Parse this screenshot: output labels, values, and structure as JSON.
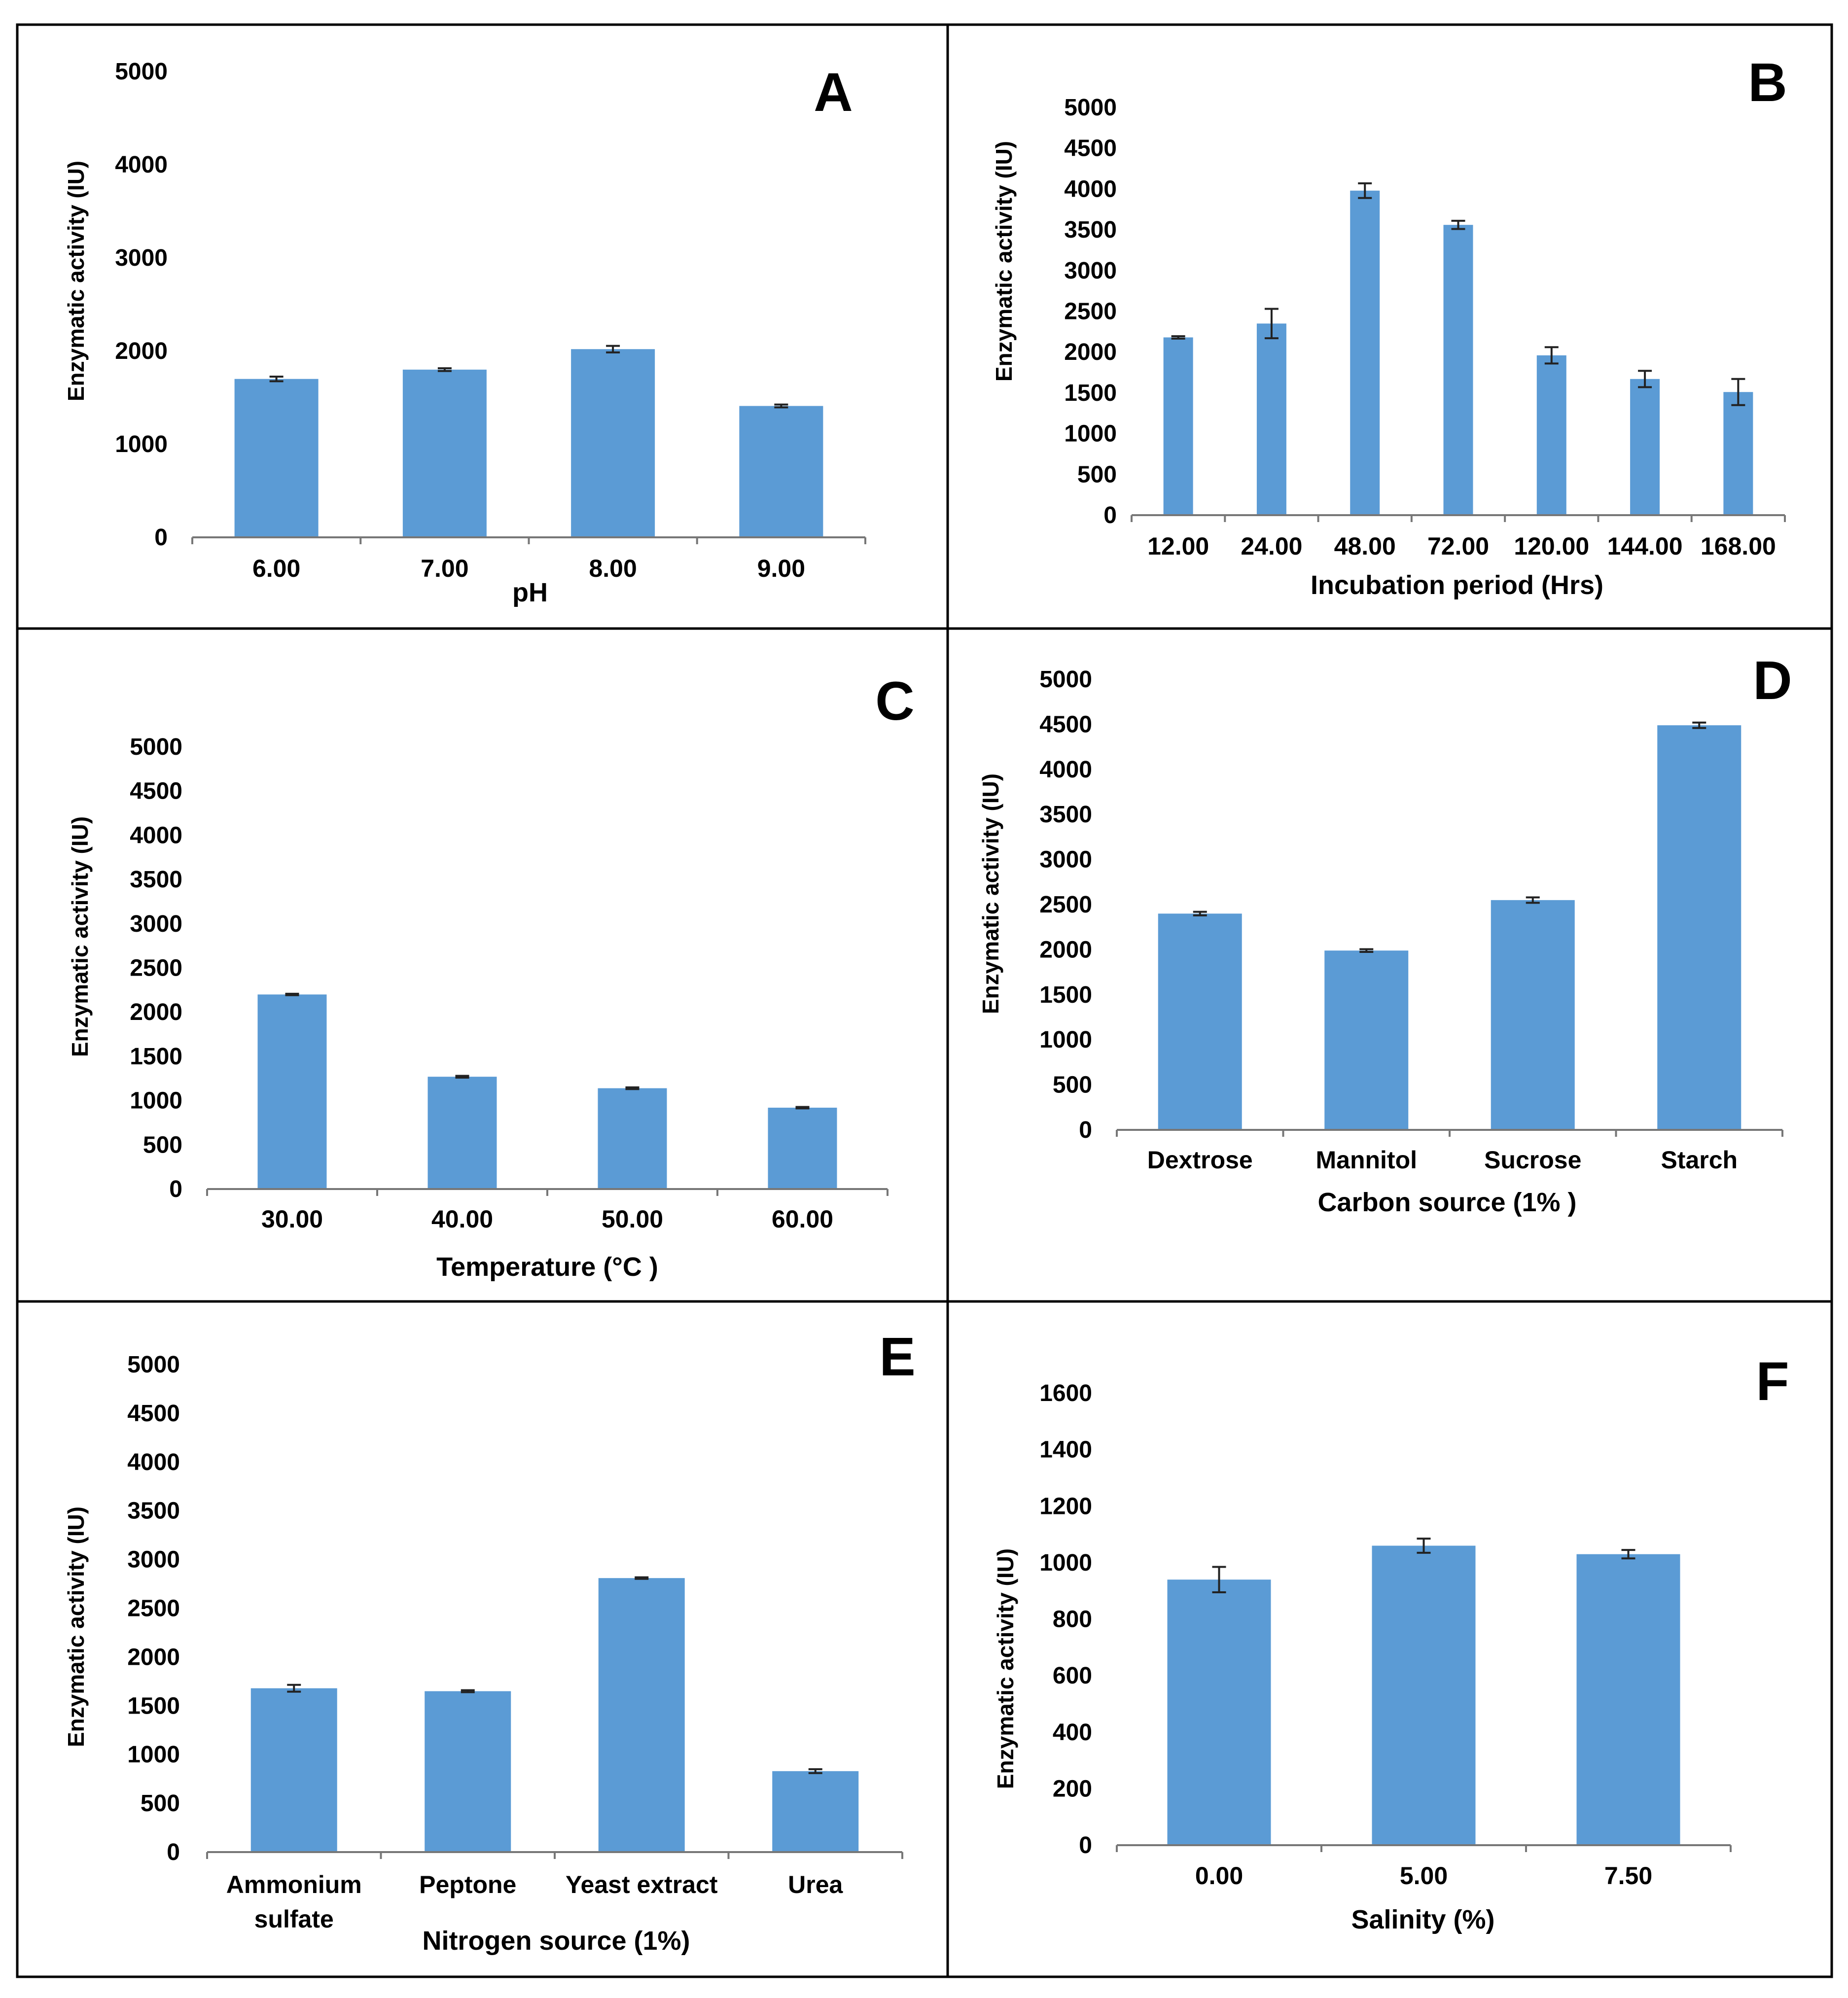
{
  "bar_color": "#5b9bd5",
  "panel_border_color": "#000000",
  "chart_data": [
    {
      "id": "A",
      "type": "bar",
      "letter": "A",
      "categories": [
        "6.00",
        "7.00",
        "8.00",
        "9.00"
      ],
      "values": [
        1700,
        1800,
        2020,
        1410
      ],
      "errors": [
        25,
        15,
        35,
        15
      ],
      "xlabel": "pH",
      "ylabel": "Enzymatic activity (IU)",
      "ylim": [
        0,
        5000
      ],
      "yticks": [
        0,
        1000,
        2000,
        3000,
        4000,
        5000
      ],
      "ytick_labels": [
        "0",
        "1000",
        "2000",
        "3000",
        "4000",
        "5000"
      ]
    },
    {
      "id": "B",
      "type": "bar",
      "letter": "B",
      "categories": [
        "12.00",
        "24.00",
        "48.00",
        "72.00",
        "120.00",
        "144.00",
        "168.00"
      ],
      "values": [
        2180,
        2350,
        3980,
        3560,
        1960,
        1670,
        1510
      ],
      "errors": [
        15,
        180,
        90,
        50,
        100,
        100,
        160
      ],
      "xlabel": "Incubation period (Hrs)",
      "ylabel": "Enzymatic activity (IU)",
      "ylim": [
        0,
        5000
      ],
      "yticks": [
        0,
        500,
        1000,
        1500,
        2000,
        2500,
        3000,
        3500,
        4000,
        4500,
        5000
      ],
      "ytick_labels": [
        "0",
        "500",
        "1000",
        "1500",
        "2000",
        "2500",
        "3000",
        "3500",
        "4000",
        "4500",
        "5000"
      ]
    },
    {
      "id": "C",
      "type": "bar",
      "letter": "C",
      "categories": [
        "30.00",
        "40.00",
        "50.00",
        "60.00"
      ],
      "values": [
        2200,
        1270,
        1140,
        920
      ],
      "errors": [
        8,
        10,
        10,
        8
      ],
      "xlabel": "Temperature (°C )",
      "ylabel": "Enzymatic activity (IU)",
      "ylim": [
        0,
        5000
      ],
      "yticks": [
        0,
        500,
        1000,
        1500,
        2000,
        2500,
        3000,
        3500,
        4000,
        4500,
        5000
      ],
      "ytick_labels": [
        "0",
        "500",
        "1000",
        "1500",
        "2000",
        "2500",
        "3000",
        "3500",
        "4000",
        "4500",
        "5000"
      ]
    },
    {
      "id": "D",
      "type": "bar",
      "letter": "D",
      "categories": [
        "Dextrose",
        "Mannitol",
        "Sucrose",
        "Starch"
      ],
      "values": [
        2400,
        1990,
        2550,
        4490
      ],
      "errors": [
        20,
        15,
        30,
        30
      ],
      "xlabel": "Carbon source (1% )",
      "ylabel": "Enzymatic activity (IU)",
      "ylim": [
        0,
        5000
      ],
      "yticks": [
        0,
        500,
        1000,
        1500,
        2000,
        2500,
        3000,
        3500,
        4000,
        4500,
        5000
      ],
      "ytick_labels": [
        "0",
        "500",
        "1000",
        "1500",
        "2000",
        "2500",
        "3000",
        "3500",
        "4000",
        "4500",
        "5000"
      ]
    },
    {
      "id": "E",
      "type": "bar",
      "letter": "E",
      "categories": [
        "Ammonium sulfate",
        "Peptone",
        "Yeast extract",
        "Urea"
      ],
      "category_lines": [
        [
          "Ammonium",
          "sulfate"
        ],
        [
          "Peptone"
        ],
        [
          "Yeast extract"
        ],
        [
          "Urea"
        ]
      ],
      "values": [
        1680,
        1650,
        2810,
        830
      ],
      "errors": [
        35,
        10,
        8,
        20
      ],
      "xlabel": "Nitrogen source (1%)",
      "ylabel": "Enzymatic activity (IU)",
      "ylim": [
        0,
        5000
      ],
      "yticks": [
        0,
        500,
        1000,
        1500,
        2000,
        2500,
        3000,
        3500,
        4000,
        4500,
        5000
      ],
      "ytick_labels": [
        "0",
        "500",
        "1000",
        "1500",
        "2000",
        "2500",
        "3000",
        "3500",
        "4000",
        "4500",
        "5000"
      ]
    },
    {
      "id": "F",
      "type": "bar",
      "letter": "F",
      "categories": [
        "0.00",
        "5.00",
        "7.50"
      ],
      "values": [
        940,
        1060,
        1030
      ],
      "errors": [
        45,
        25,
        15
      ],
      "xlabel": "Salinity (%)",
      "ylabel": "Enzymatic activity (IU)",
      "ylim": [
        0,
        1600
      ],
      "yticks": [
        0,
        200,
        400,
        600,
        800,
        1000,
        1200,
        1400,
        1600
      ],
      "ytick_labels": [
        "0",
        "200",
        "400",
        "600",
        "800",
        "1000",
        "1200",
        "1400",
        "1600"
      ]
    }
  ]
}
